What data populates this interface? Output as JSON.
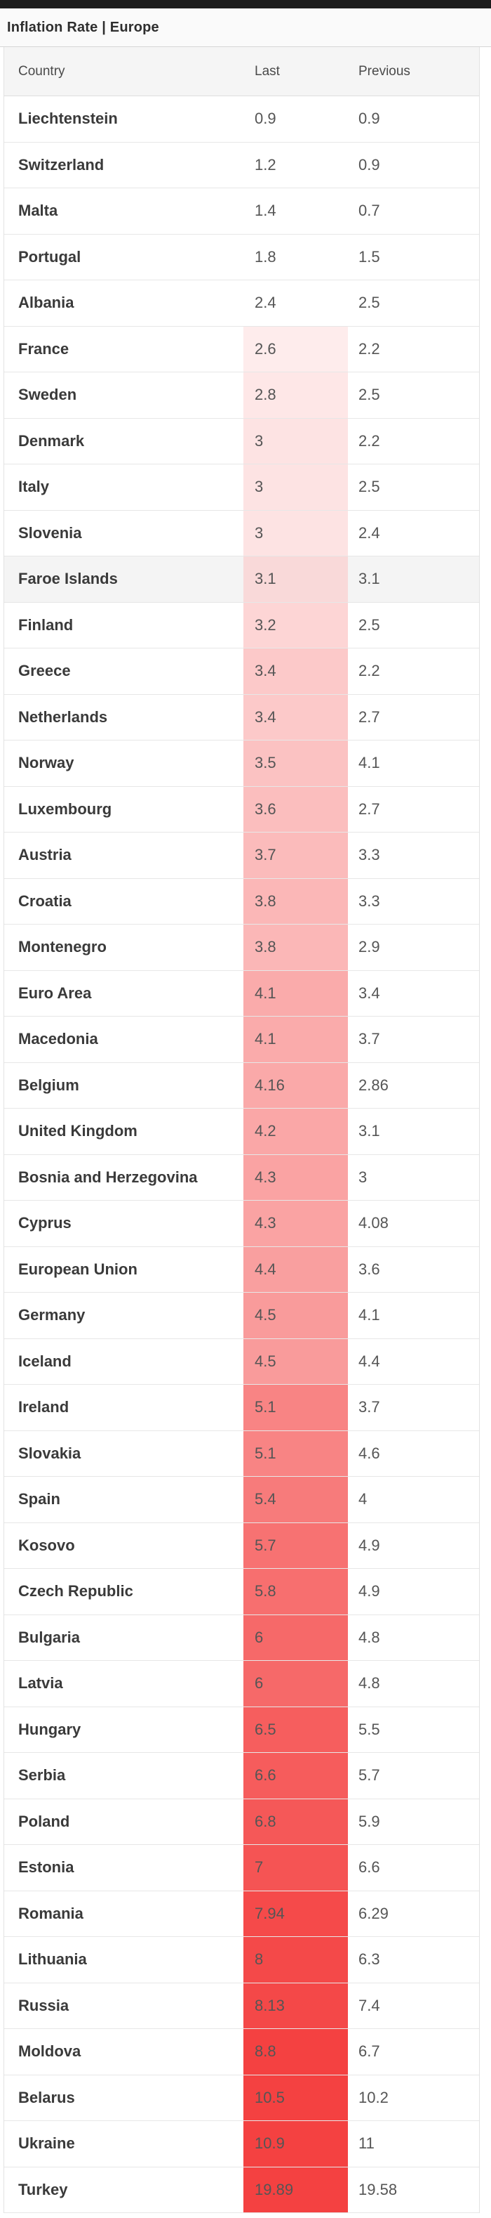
{
  "title": "Inflation Rate | Europe",
  "table": {
    "columns": [
      "Country",
      "Last",
      "Previous"
    ],
    "rows": [
      {
        "country": "Liechtenstein",
        "last": "0.9",
        "previous": "0.9"
      },
      {
        "country": "Switzerland",
        "last": "1.2",
        "previous": "0.9"
      },
      {
        "country": "Malta",
        "last": "1.4",
        "previous": "0.7"
      },
      {
        "country": "Portugal",
        "last": "1.8",
        "previous": "1.5"
      },
      {
        "country": "Albania",
        "last": "2.4",
        "previous": "2.5"
      },
      {
        "country": "France",
        "last": "2.6",
        "previous": "2.2"
      },
      {
        "country": "Sweden",
        "last": "2.8",
        "previous": "2.5"
      },
      {
        "country": "Denmark",
        "last": "3",
        "previous": "2.2"
      },
      {
        "country": "Italy",
        "last": "3",
        "previous": "2.5"
      },
      {
        "country": "Slovenia",
        "last": "3",
        "previous": "2.4"
      },
      {
        "country": "Faroe Islands",
        "last": "3.1",
        "previous": "3.1",
        "highlighted": true
      },
      {
        "country": "Finland",
        "last": "3.2",
        "previous": "2.5"
      },
      {
        "country": "Greece",
        "last": "3.4",
        "previous": "2.2"
      },
      {
        "country": "Netherlands",
        "last": "3.4",
        "previous": "2.7"
      },
      {
        "country": "Norway",
        "last": "3.5",
        "previous": "4.1"
      },
      {
        "country": "Luxembourg",
        "last": "3.6",
        "previous": "2.7"
      },
      {
        "country": "Austria",
        "last": "3.7",
        "previous": "3.3"
      },
      {
        "country": "Croatia",
        "last": "3.8",
        "previous": "3.3"
      },
      {
        "country": "Montenegro",
        "last": "3.8",
        "previous": "2.9"
      },
      {
        "country": "Euro Area",
        "last": "4.1",
        "previous": "3.4"
      },
      {
        "country": "Macedonia",
        "last": "4.1",
        "previous": "3.7"
      },
      {
        "country": "Belgium",
        "last": "4.16",
        "previous": "2.86"
      },
      {
        "country": "United Kingdom",
        "last": "4.2",
        "previous": "3.1"
      },
      {
        "country": "Bosnia and Herzegovina",
        "last": "4.3",
        "previous": "3"
      },
      {
        "country": "Cyprus",
        "last": "4.3",
        "previous": "4.08"
      },
      {
        "country": "European Union",
        "last": "4.4",
        "previous": "3.6"
      },
      {
        "country": "Germany",
        "last": "4.5",
        "previous": "4.1"
      },
      {
        "country": "Iceland",
        "last": "4.5",
        "previous": "4.4"
      },
      {
        "country": "Ireland",
        "last": "5.1",
        "previous": "3.7"
      },
      {
        "country": "Slovakia",
        "last": "5.1",
        "previous": "4.6"
      },
      {
        "country": "Spain",
        "last": "5.4",
        "previous": "4"
      },
      {
        "country": "Kosovo",
        "last": "5.7",
        "previous": "4.9"
      },
      {
        "country": "Czech Republic",
        "last": "5.8",
        "previous": "4.9"
      },
      {
        "country": "Bulgaria",
        "last": "6",
        "previous": "4.8"
      },
      {
        "country": "Latvia",
        "last": "6",
        "previous": "4.8"
      },
      {
        "country": "Hungary",
        "last": "6.5",
        "previous": "5.5"
      },
      {
        "country": "Serbia",
        "last": "6.6",
        "previous": "5.7"
      },
      {
        "country": "Poland",
        "last": "6.8",
        "previous": "5.9"
      },
      {
        "country": "Estonia",
        "last": "7",
        "previous": "6.6"
      },
      {
        "country": "Romania",
        "last": "7.94",
        "previous": "6.29"
      },
      {
        "country": "Lithuania",
        "last": "8",
        "previous": "6.3"
      },
      {
        "country": "Russia",
        "last": "8.13",
        "previous": "7.4"
      },
      {
        "country": "Moldova",
        "last": "8.8",
        "previous": "6.7"
      },
      {
        "country": "Belarus",
        "last": "10.5",
        "previous": "10.2"
      },
      {
        "country": "Ukraine",
        "last": "10.9",
        "previous": "11"
      },
      {
        "country": "Turkey",
        "last": "19.89",
        "previous": "19.58"
      }
    ]
  },
  "heatmap": {
    "applies_to_column": "Last",
    "no_color_below": 2.45,
    "min_color": "#ffffff",
    "max_color": "#f44141",
    "scale_anchors": [
      [
        2.45,
        0
      ],
      [
        2.6,
        0.1
      ],
      [
        3.0,
        0.15
      ],
      [
        3.2,
        0.22
      ],
      [
        3.5,
        0.32
      ],
      [
        4.1,
        0.44
      ],
      [
        5.1,
        0.65
      ],
      [
        6.0,
        0.79
      ],
      [
        7.0,
        0.9
      ],
      [
        8.8,
        1.0
      ]
    ]
  },
  "chart_data": {
    "type": "table",
    "title": "Inflation Rate | Europe",
    "columns": [
      "Country",
      "Last",
      "Previous"
    ],
    "note": "Last column is heat-colored from white (low) to red (high)"
  }
}
